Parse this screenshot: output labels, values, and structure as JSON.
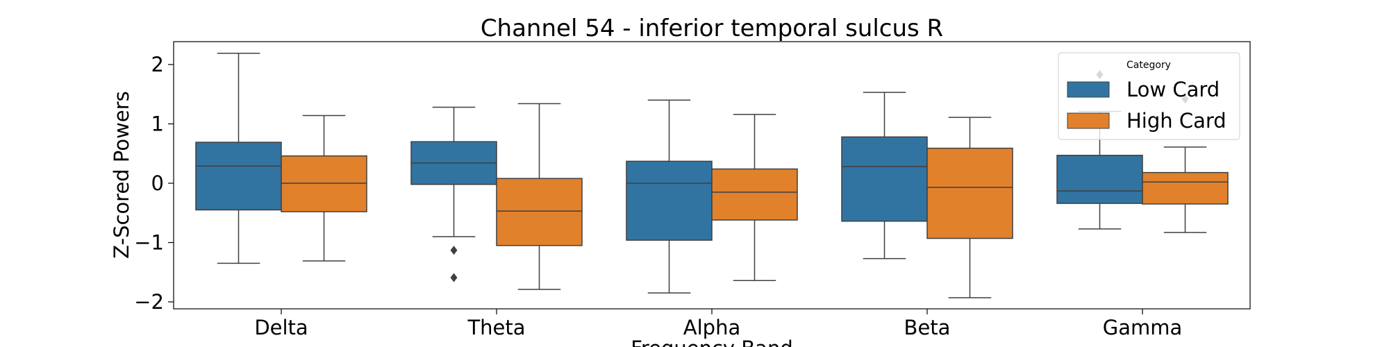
{
  "chart_data": {
    "type": "box",
    "title": "Channel 54 - inferior temporal sulcus R",
    "xlabel": "Frequency Band",
    "ylabel": "Z-Scored Powers",
    "categories": [
      "Delta",
      "Theta",
      "Alpha",
      "Beta",
      "Gamma"
    ],
    "ylim": [
      -2.1,
      2.4
    ],
    "yticks": [
      {
        "value": 2,
        "label": "2"
      },
      {
        "value": 1,
        "label": "1"
      },
      {
        "value": 0,
        "label": "0"
      },
      {
        "value": -1,
        "label": "−1"
      },
      {
        "value": -2,
        "label": "−2"
      }
    ],
    "grid": false,
    "legend": {
      "title": "Category",
      "position": "top-right"
    },
    "series": [
      {
        "name": "Low Card",
        "color": "#3274a1",
        "boxes": [
          {
            "whisker_low": -1.35,
            "q1": -0.45,
            "median": 0.29,
            "q3": 0.69,
            "whisker_high": 2.19,
            "outliers": []
          },
          {
            "whisker_low": -0.9,
            "q1": -0.02,
            "median": 0.34,
            "q3": 0.7,
            "whisker_high": 1.28,
            "outliers": [
              -1.13,
              -1.59
            ]
          },
          {
            "whisker_low": -1.85,
            "q1": -0.96,
            "median": 0.0,
            "q3": 0.37,
            "whisker_high": 1.4,
            "outliers": []
          },
          {
            "whisker_low": -1.27,
            "q1": -0.64,
            "median": 0.28,
            "q3": 0.78,
            "whisker_high": 1.53,
            "outliers": []
          },
          {
            "whisker_low": -0.77,
            "q1": -0.34,
            "median": -0.13,
            "q3": 0.47,
            "whisker_high": 1.21,
            "outliers": [
              1.83
            ]
          }
        ]
      },
      {
        "name": "High Card",
        "color": "#e1812c",
        "boxes": [
          {
            "whisker_low": -1.31,
            "q1": -0.48,
            "median": 0.0,
            "q3": 0.46,
            "whisker_high": 1.14,
            "outliers": []
          },
          {
            "whisker_low": -1.79,
            "q1": -1.05,
            "median": -0.47,
            "q3": 0.08,
            "whisker_high": 1.34,
            "outliers": []
          },
          {
            "whisker_low": -1.64,
            "q1": -0.62,
            "median": -0.15,
            "q3": 0.24,
            "whisker_high": 1.16,
            "outliers": []
          },
          {
            "whisker_low": -1.93,
            "q1": -0.93,
            "median": -0.07,
            "q3": 0.59,
            "whisker_high": 1.11,
            "outliers": []
          },
          {
            "whisker_low": -0.83,
            "q1": -0.35,
            "median": 0.02,
            "q3": 0.18,
            "whisker_high": 0.61,
            "outliers": [
              1.42
            ]
          }
        ]
      }
    ]
  }
}
